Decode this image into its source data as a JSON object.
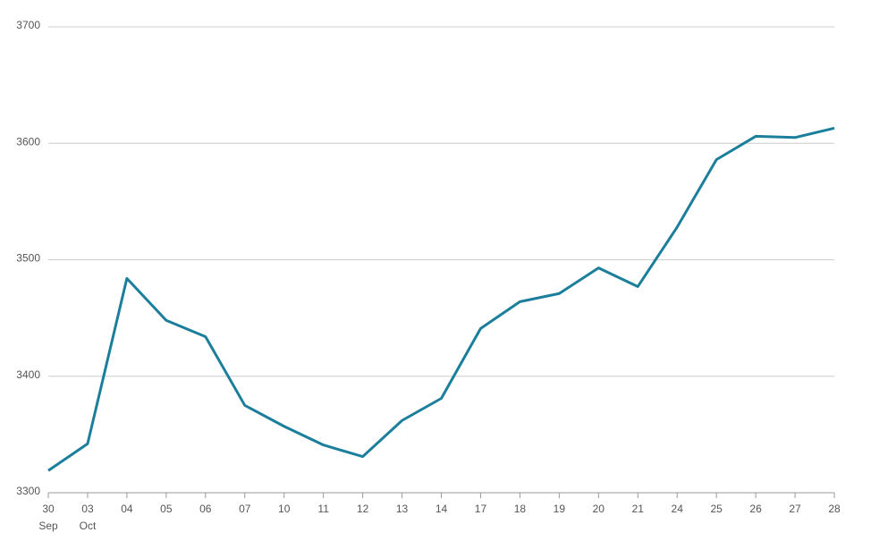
{
  "chart_data": {
    "type": "line",
    "categories": [
      "30",
      "03",
      "04",
      "05",
      "06",
      "07",
      "10",
      "11",
      "12",
      "13",
      "14",
      "17",
      "18",
      "19",
      "20",
      "21",
      "24",
      "25",
      "26",
      "27",
      "28"
    ],
    "month_labels": [
      "Sep",
      "Oct",
      null,
      null,
      null,
      null,
      null,
      null,
      null,
      null,
      null,
      null,
      null,
      null,
      null,
      null,
      null,
      null,
      null,
      null,
      null
    ],
    "values": [
      3319,
      3342,
      3484,
      3448,
      3434,
      3375,
      3357,
      3341,
      3331,
      3362,
      3381,
      3441,
      3464,
      3471,
      3493,
      3477,
      3528,
      3586,
      3606,
      3605,
      3613
    ],
    "color": "#1b7f9c",
    "ylim": [
      3300,
      3700
    ],
    "yticks": [
      3300,
      3400,
      3500,
      3600,
      3700
    ],
    "grid": true
  }
}
